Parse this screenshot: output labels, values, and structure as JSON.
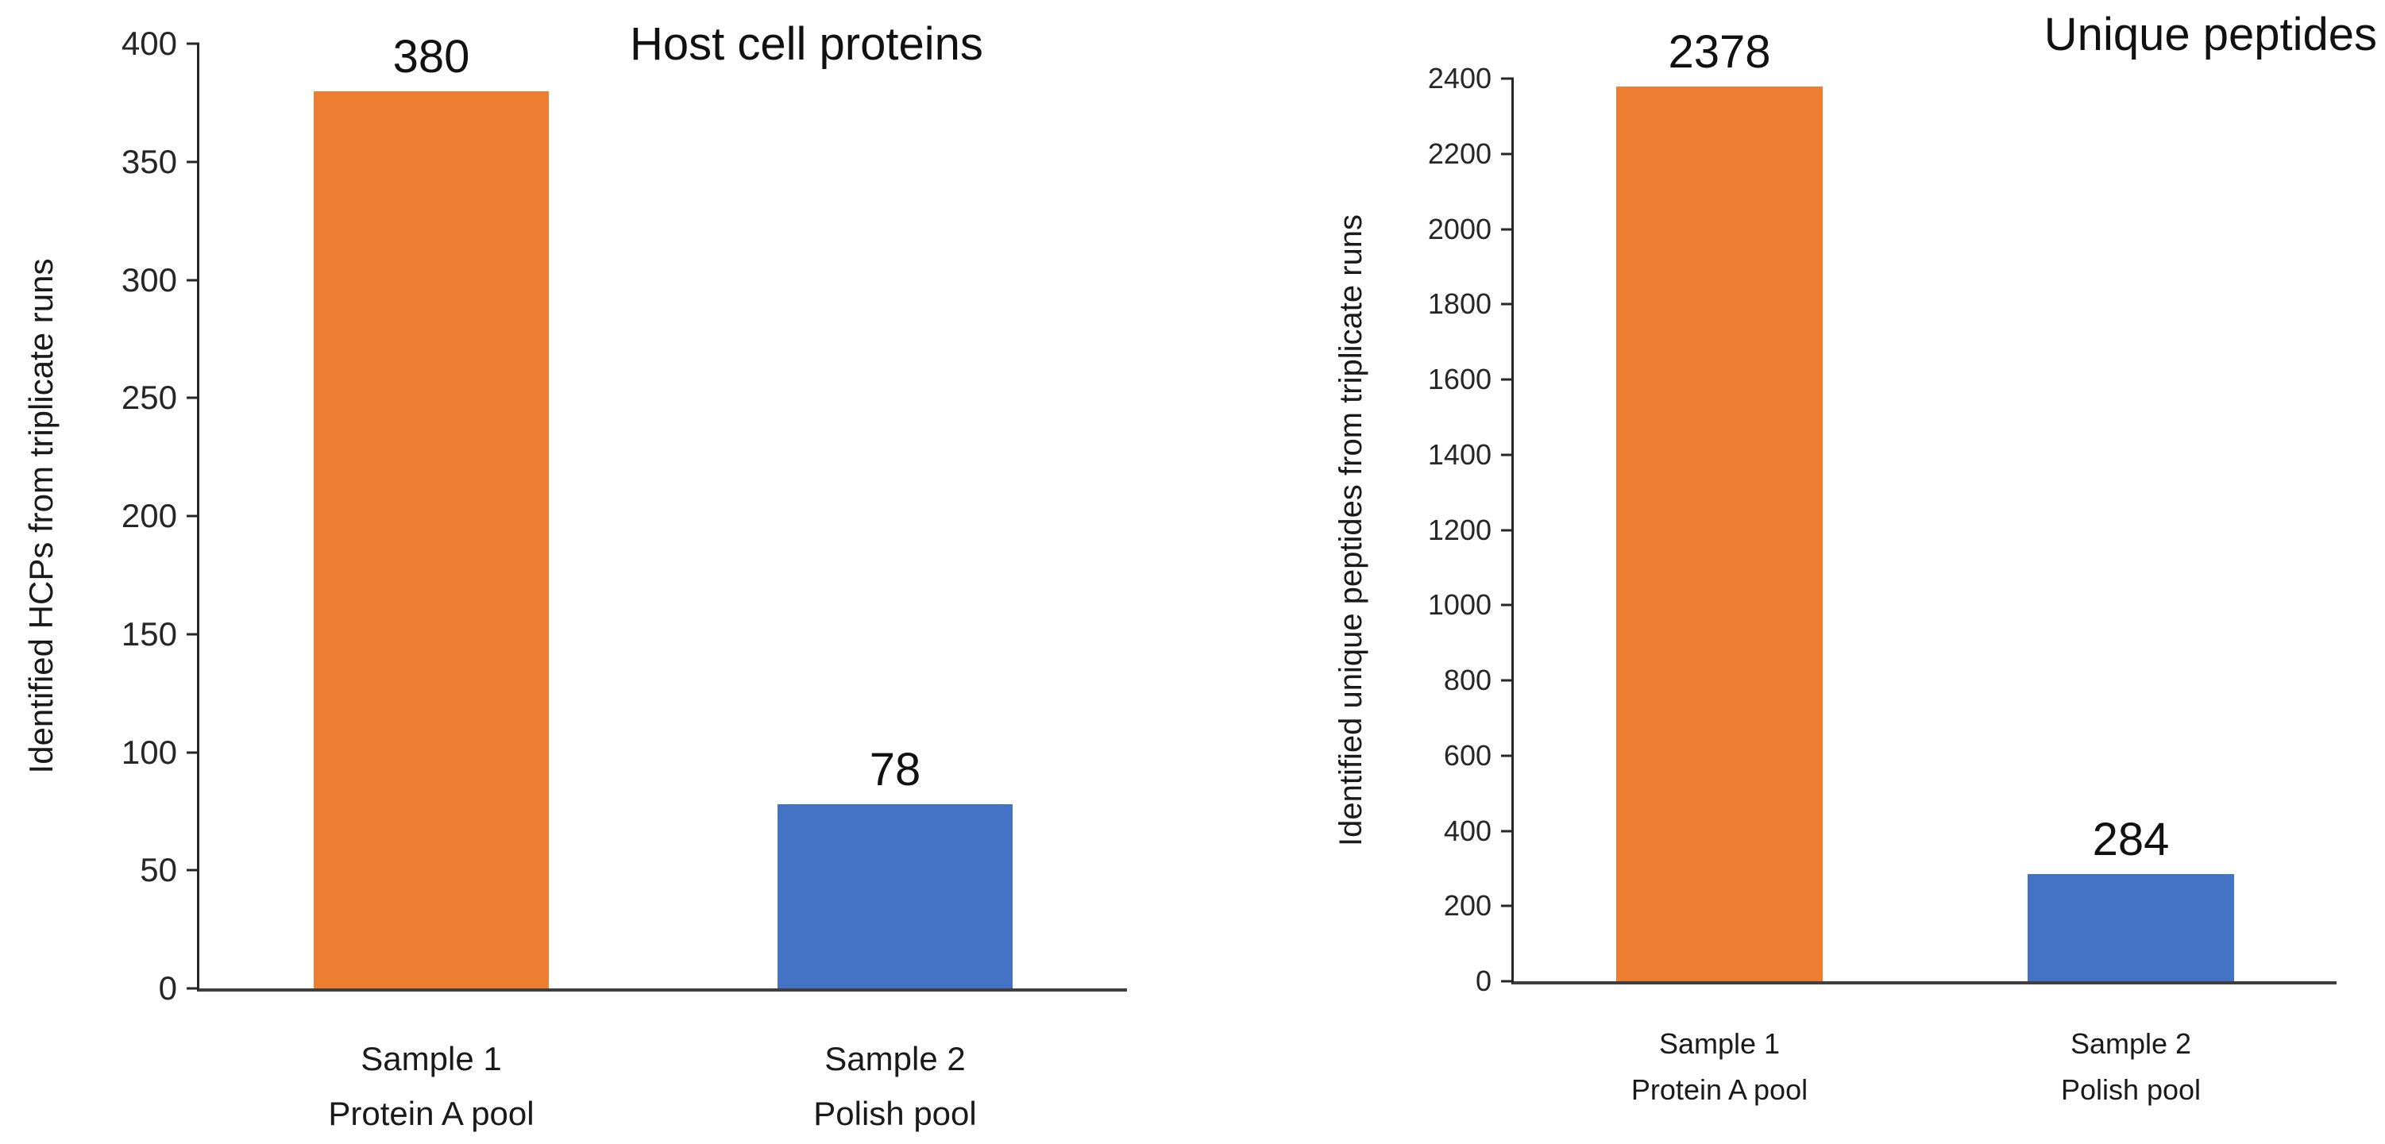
{
  "figure": {
    "background": "#ffffff",
    "axis_color": "#262626",
    "baseline_color": "#3f3f3f"
  },
  "chart_data": [
    {
      "type": "bar",
      "title": "Host cell proteins",
      "ylabel": "Identified HCPs from triplicate runs",
      "xlabel": "",
      "categories": [
        "Sample 1\nProtein A pool",
        "Sample 2\nPolish pool"
      ],
      "values": [
        380,
        78
      ],
      "data_labels": [
        "380",
        "78"
      ],
      "bar_colors": [
        "#ED7D31",
        "#4472C4"
      ],
      "ylim": [
        0,
        400
      ],
      "ytick_step": 50,
      "grid": false,
      "legend_position": "none"
    },
    {
      "type": "bar",
      "title": "Unique peptides",
      "ylabel": "Identified unique peptides from triplicate runs",
      "xlabel": "",
      "categories": [
        "Sample 1\nProtein A pool",
        "Sample 2\nPolish pool"
      ],
      "values": [
        2378,
        284
      ],
      "data_labels": [
        "2378",
        "284"
      ],
      "bar_colors": [
        "#ED7D31",
        "#4472C4"
      ],
      "ylim": [
        0,
        2400
      ],
      "ytick_step": 200,
      "grid": false,
      "legend_position": "none"
    }
  ]
}
